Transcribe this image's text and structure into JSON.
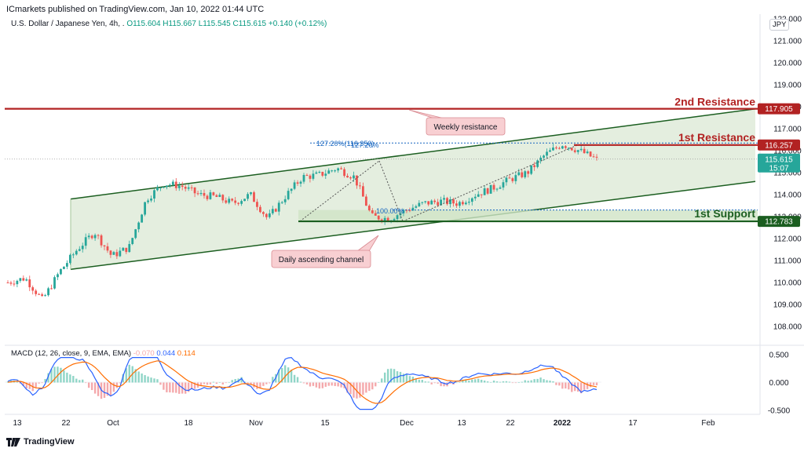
{
  "header": {
    "publisher": "ICmarkets published on TradingView.com, Jan 10, 2022 01:44 UTC",
    "symbol": "U.S. Dollar / Japanese Yen, 4h, .",
    "open": "O115.604",
    "high": "H115.667",
    "low": "L115.545",
    "close": "C115.615",
    "change": "+0.140 (+0.12%)"
  },
  "currency_label": "JPY",
  "price_badges": {
    "second_resistance": "117.905",
    "first_resistance": "116.257",
    "current_price": "115.615",
    "countdown": "15:07",
    "first_support": "112.783"
  },
  "annotations": {
    "second_resistance_label": "2nd Resistance",
    "first_resistance_label": "1st Resistance",
    "first_support_label": "1st Support",
    "weekly_resistance_callout": "Weekly resistance",
    "daily_channel_callout": "Daily ascending channel",
    "fib_127": "127.20%(116.350)",
    "fib_127_short": "127.20%",
    "fib_100": "100.00%"
  },
  "macd": {
    "title": "MACD (12, 26, close, 9, EMA, EMA)",
    "histogram_value": "-0.070",
    "macd_value": "0.044",
    "signal_value": "0.114"
  },
  "footer": {
    "brand": "TradingView"
  },
  "colors": {
    "resistance": "#b22222",
    "support": "#1b5e20",
    "channel": "#1b5e20",
    "channel_fill": "#e4eedf",
    "candle_up": "#26a69a",
    "candle_down": "#ef5350",
    "macd_line": "#2962ff",
    "signal_line": "#ff6d00",
    "fib": "#1565c0"
  },
  "chart_data": {
    "type": "candlestick",
    "instrument": "U.S. Dollar / Japanese Yen",
    "timeframe": "4h",
    "price_axis": {
      "ticks": [
        "122.000",
        "121.000",
        "120.000",
        "119.000",
        "118.000",
        "117.000",
        "116.000",
        "115.000",
        "114.000",
        "113.000",
        "112.000",
        "111.000",
        "110.000",
        "109.000",
        "108.000"
      ],
      "range": [
        107.5,
        122.0
      ]
    },
    "x_axis_labels": [
      "13",
      "22",
      "Oct",
      "18",
      "Nov",
      "15",
      "Dec",
      "13",
      "22",
      "2022",
      "17",
      "Feb"
    ],
    "price_path": [
      [
        "13",
        110.0
      ],
      [
        "",
        110.2
      ],
      [
        "",
        109.2
      ],
      [
        "22",
        110.5
      ],
      [
        "",
        111.5
      ],
      [
        "",
        112.3
      ],
      [
        "Oct",
        111.2
      ],
      [
        "",
        111.6
      ],
      [
        "",
        113.8
      ],
      [
        "",
        114.5
      ],
      [
        "18",
        114.4
      ],
      [
        "",
        114.0
      ],
      [
        "",
        113.9
      ],
      [
        "",
        113.6
      ],
      [
        "Nov",
        114.0
      ],
      [
        "",
        112.9
      ],
      [
        "",
        113.9
      ],
      [
        "15",
        114.8
      ],
      [
        "",
        114.9
      ],
      [
        "",
        115.2
      ],
      [
        "",
        114.8
      ],
      [
        "",
        113.0
      ],
      [
        "Dec",
        112.9
      ],
      [
        "",
        113.3
      ],
      [
        "",
        113.6
      ],
      [
        "13",
        113.7
      ],
      [
        "",
        113.6
      ],
      [
        "",
        114.0
      ],
      [
        "22",
        114.3
      ],
      [
        "",
        114.7
      ],
      [
        "",
        115.0
      ],
      [
        "",
        115.8
      ],
      [
        "2022",
        116.3
      ],
      [
        "",
        116.0
      ],
      [
        "",
        115.6
      ]
    ],
    "levels": {
      "second_resistance": 117.905,
      "first_resistance": 116.257,
      "current": 115.615,
      "first_support": 112.783
    },
    "channel": {
      "upper": [
        [
          "22",
          113.8
        ],
        [
          "end",
          117.9
        ]
      ],
      "lower": [
        [
          "22",
          110.6
        ],
        [
          "end",
          114.6
        ]
      ]
    },
    "fibonacci": [
      {
        "label": "127.20%(116.350)",
        "level": 116.35
      },
      {
        "label": "100.00%",
        "level": 113.3
      }
    ],
    "macd": {
      "title": "MACD (12, 26, close, 9, EMA, EMA)",
      "ticks": [
        "0.500",
        "0.000",
        "-0.500"
      ],
      "range": [
        -0.62,
        0.62
      ],
      "histogram": -0.07,
      "macd": 0.044,
      "signal": 0.114
    }
  }
}
